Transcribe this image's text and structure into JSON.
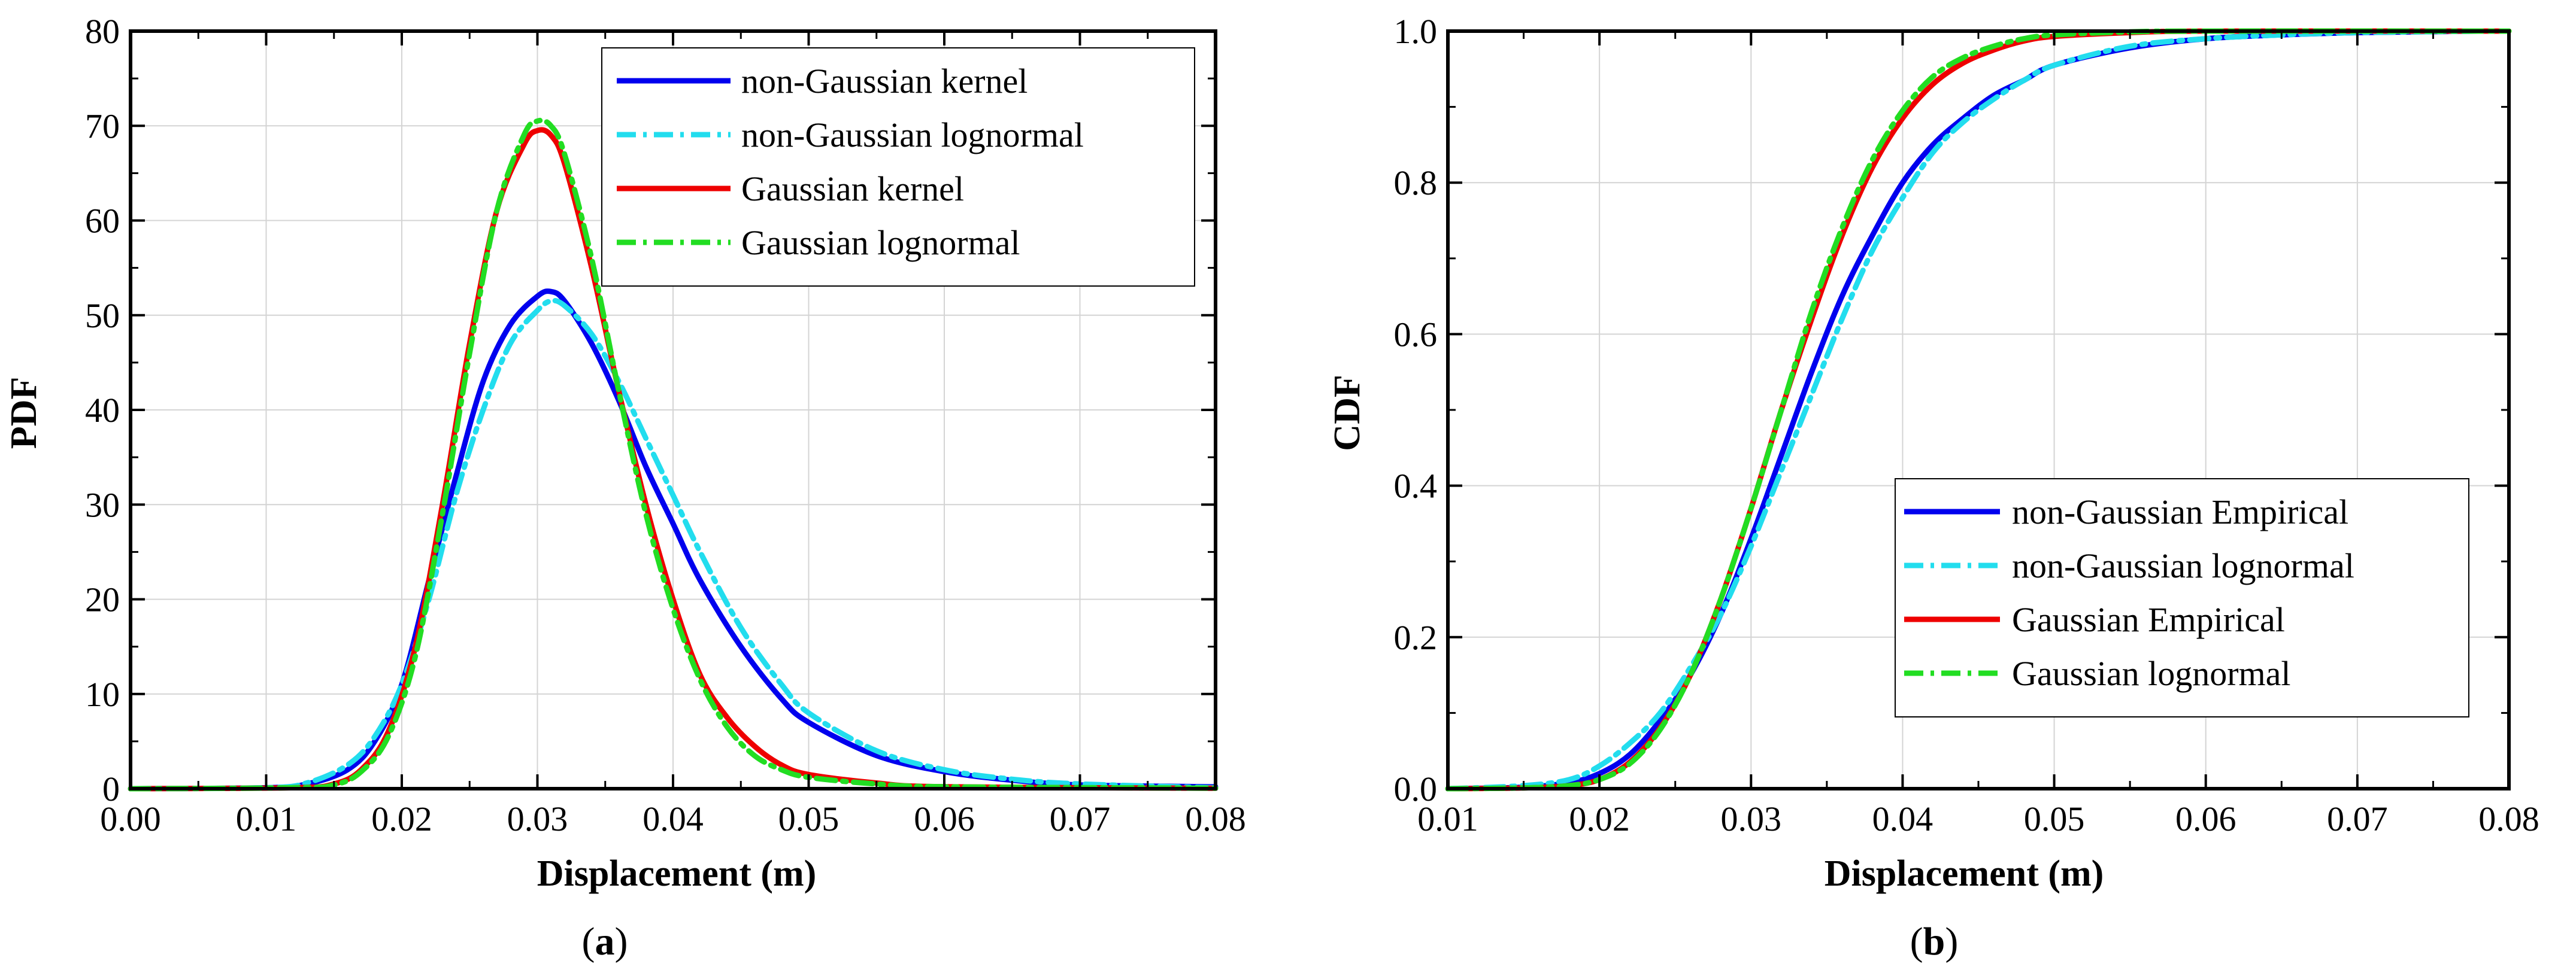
{
  "chart_data": [
    {
      "id": "a",
      "type": "line",
      "panel_label_prefix": "(",
      "panel_label_letter": "a",
      "panel_label_suffix": ")",
      "xlabel": "Displacement (m)",
      "ylabel": "PDF",
      "xlim": [
        0.0,
        0.08
      ],
      "ylim": [
        0,
        80
      ],
      "xticks": [
        0.0,
        0.01,
        0.02,
        0.03,
        0.04,
        0.05,
        0.06,
        0.07,
        0.08
      ],
      "xtick_labels": [
        "0.00",
        "0.01",
        "0.02",
        "0.03",
        "0.04",
        "0.05",
        "0.06",
        "0.07",
        "0.08"
      ],
      "yticks": [
        0,
        10,
        20,
        30,
        40,
        50,
        60,
        70,
        80
      ],
      "ytick_labels": [
        "0",
        "10",
        "20",
        "30",
        "40",
        "50",
        "60",
        "70",
        "80"
      ],
      "grid": true,
      "legend_position": "top-right",
      "series": [
        {
          "name": "non-Gaussian kernel",
          "color": "#0000ee",
          "dash": "solid",
          "x": [
            0.0,
            0.01,
            0.013,
            0.016,
            0.018,
            0.02,
            0.022,
            0.024,
            0.026,
            0.028,
            0.03,
            0.031,
            0.032,
            0.034,
            0.036,
            0.038,
            0.04,
            0.042,
            0.045,
            0.048,
            0.05,
            0.055,
            0.06,
            0.065,
            0.07,
            0.08
          ],
          "y": [
            0,
            0.1,
            0.5,
            2,
            5,
            11,
            22,
            33,
            43,
            49,
            52,
            52.5,
            51.5,
            47,
            41,
            34,
            28,
            22,
            15,
            9.5,
            7,
            3.5,
            1.8,
            0.9,
            0.4,
            0.2
          ]
        },
        {
          "name": "non-Gaussian lognormal",
          "color": "#22ddee",
          "dash": "dashdot",
          "x": [
            0.0,
            0.01,
            0.013,
            0.016,
            0.018,
            0.02,
            0.022,
            0.024,
            0.026,
            0.028,
            0.03,
            0.031,
            0.032,
            0.034,
            0.036,
            0.038,
            0.04,
            0.042,
            0.045,
            0.048,
            0.05,
            0.055,
            0.06,
            0.065,
            0.07,
            0.08
          ],
          "y": [
            0,
            0.1,
            0.6,
            2.5,
            5.5,
            11,
            20,
            31,
            40,
            47,
            50.5,
            51.5,
            51,
            48,
            43,
            37,
            31,
            25,
            17,
            11,
            8,
            4,
            2,
            1,
            0.5,
            0.1
          ]
        },
        {
          "name": "Gaussian kernel",
          "color": "#ee0000",
          "dash": "solid",
          "x": [
            0.0,
            0.012,
            0.015,
            0.017,
            0.019,
            0.021,
            0.023,
            0.025,
            0.027,
            0.029,
            0.03,
            0.031,
            0.032,
            0.034,
            0.036,
            0.038,
            0.04,
            0.042,
            0.044,
            0.046,
            0.048,
            0.05,
            0.055,
            0.06,
            0.08
          ],
          "y": [
            0,
            0.1,
            0.5,
            2,
            6,
            15,
            30,
            47,
            61,
            68,
            69.5,
            69,
            66,
            55,
            42,
            30,
            20,
            12,
            7.5,
            4.5,
            2.5,
            1.5,
            0.6,
            0.2,
            0.05
          ]
        },
        {
          "name": "Gaussian lognormal",
          "color": "#22dd22",
          "dash": "dashdot",
          "x": [
            0.0,
            0.012,
            0.015,
            0.017,
            0.019,
            0.021,
            0.023,
            0.025,
            0.027,
            0.029,
            0.03,
            0.031,
            0.032,
            0.034,
            0.036,
            0.038,
            0.04,
            0.042,
            0.044,
            0.046,
            0.048,
            0.05,
            0.055,
            0.06,
            0.08
          ],
          "y": [
            0,
            0.1,
            0.4,
            1.8,
            5.5,
            14,
            29,
            46,
            61,
            69,
            70.5,
            70,
            67,
            56,
            42,
            29,
            19,
            11.5,
            6.5,
            3.5,
            2,
            1.2,
            0.5,
            0.2,
            0.05
          ]
        }
      ]
    },
    {
      "id": "b",
      "type": "line",
      "panel_label_prefix": "(",
      "panel_label_letter": "b",
      "panel_label_suffix": ")",
      "xlabel": "Displacement (m)",
      "ylabel": "CDF",
      "xlim": [
        0.01,
        0.08
      ],
      "ylim": [
        0.0,
        1.0
      ],
      "xticks": [
        0.01,
        0.02,
        0.03,
        0.04,
        0.05,
        0.06,
        0.07,
        0.08
      ],
      "xtick_labels": [
        "0.01",
        "0.02",
        "0.03",
        "0.04",
        "0.05",
        "0.06",
        "0.07",
        "0.08"
      ],
      "yticks": [
        0.0,
        0.2,
        0.4,
        0.6,
        0.8,
        1.0
      ],
      "ytick_labels": [
        "0.0",
        "0.2",
        "0.4",
        "0.6",
        "0.8",
        "1.0"
      ],
      "grid": true,
      "legend_position": "bottom-right",
      "series": [
        {
          "name": "non-Gaussian Empirical",
          "color": "#0000ee",
          "dash": "solid",
          "x": [
            0.01,
            0.015,
            0.018,
            0.02,
            0.022,
            0.024,
            0.026,
            0.028,
            0.03,
            0.032,
            0.034,
            0.036,
            0.038,
            0.04,
            0.042,
            0.044,
            0.046,
            0.048,
            0.05,
            0.055,
            0.06,
            0.065,
            0.07,
            0.078
          ],
          "y": [
            0,
            0.002,
            0.008,
            0.02,
            0.045,
            0.09,
            0.15,
            0.23,
            0.33,
            0.44,
            0.55,
            0.65,
            0.73,
            0.8,
            0.85,
            0.885,
            0.915,
            0.935,
            0.955,
            0.978,
            0.99,
            0.995,
            0.998,
            1.0
          ]
        },
        {
          "name": "non-Gaussian lognormal",
          "color": "#22ddee",
          "dash": "dashdot",
          "x": [
            0.01,
            0.015,
            0.018,
            0.02,
            0.022,
            0.024,
            0.026,
            0.028,
            0.03,
            0.032,
            0.034,
            0.036,
            0.038,
            0.04,
            0.042,
            0.044,
            0.046,
            0.048,
            0.05,
            0.055,
            0.06,
            0.065,
            0.07,
            0.078
          ],
          "y": [
            0,
            0.004,
            0.012,
            0.03,
            0.06,
            0.1,
            0.16,
            0.23,
            0.32,
            0.42,
            0.52,
            0.62,
            0.71,
            0.78,
            0.84,
            0.88,
            0.91,
            0.935,
            0.955,
            0.98,
            0.99,
            0.995,
            0.998,
            1.0
          ]
        },
        {
          "name": "Gaussian Empirical",
          "color": "#ee0000",
          "dash": "solid",
          "x": [
            0.01,
            0.015,
            0.018,
            0.02,
            0.022,
            0.024,
            0.026,
            0.028,
            0.03,
            0.032,
            0.034,
            0.036,
            0.038,
            0.04,
            0.042,
            0.044,
            0.046,
            0.048,
            0.05,
            0.055,
            0.06,
            0.08
          ],
          "y": [
            0,
            0.001,
            0.004,
            0.012,
            0.035,
            0.08,
            0.15,
            0.25,
            0.37,
            0.5,
            0.62,
            0.73,
            0.82,
            0.885,
            0.93,
            0.958,
            0.975,
            0.987,
            0.993,
            0.998,
            1.0,
            1.0
          ]
        },
        {
          "name": "Gaussian lognormal",
          "color": "#22dd22",
          "dash": "dashdot",
          "x": [
            0.01,
            0.015,
            0.018,
            0.02,
            0.022,
            0.024,
            0.026,
            0.028,
            0.03,
            0.032,
            0.034,
            0.036,
            0.038,
            0.04,
            0.042,
            0.044,
            0.046,
            0.048,
            0.05,
            0.055,
            0.06,
            0.08
          ],
          "y": [
            0,
            0.001,
            0.004,
            0.012,
            0.033,
            0.078,
            0.15,
            0.25,
            0.37,
            0.5,
            0.63,
            0.74,
            0.83,
            0.895,
            0.94,
            0.965,
            0.98,
            0.99,
            0.995,
            0.999,
            1.0,
            1.0
          ]
        }
      ]
    }
  ]
}
